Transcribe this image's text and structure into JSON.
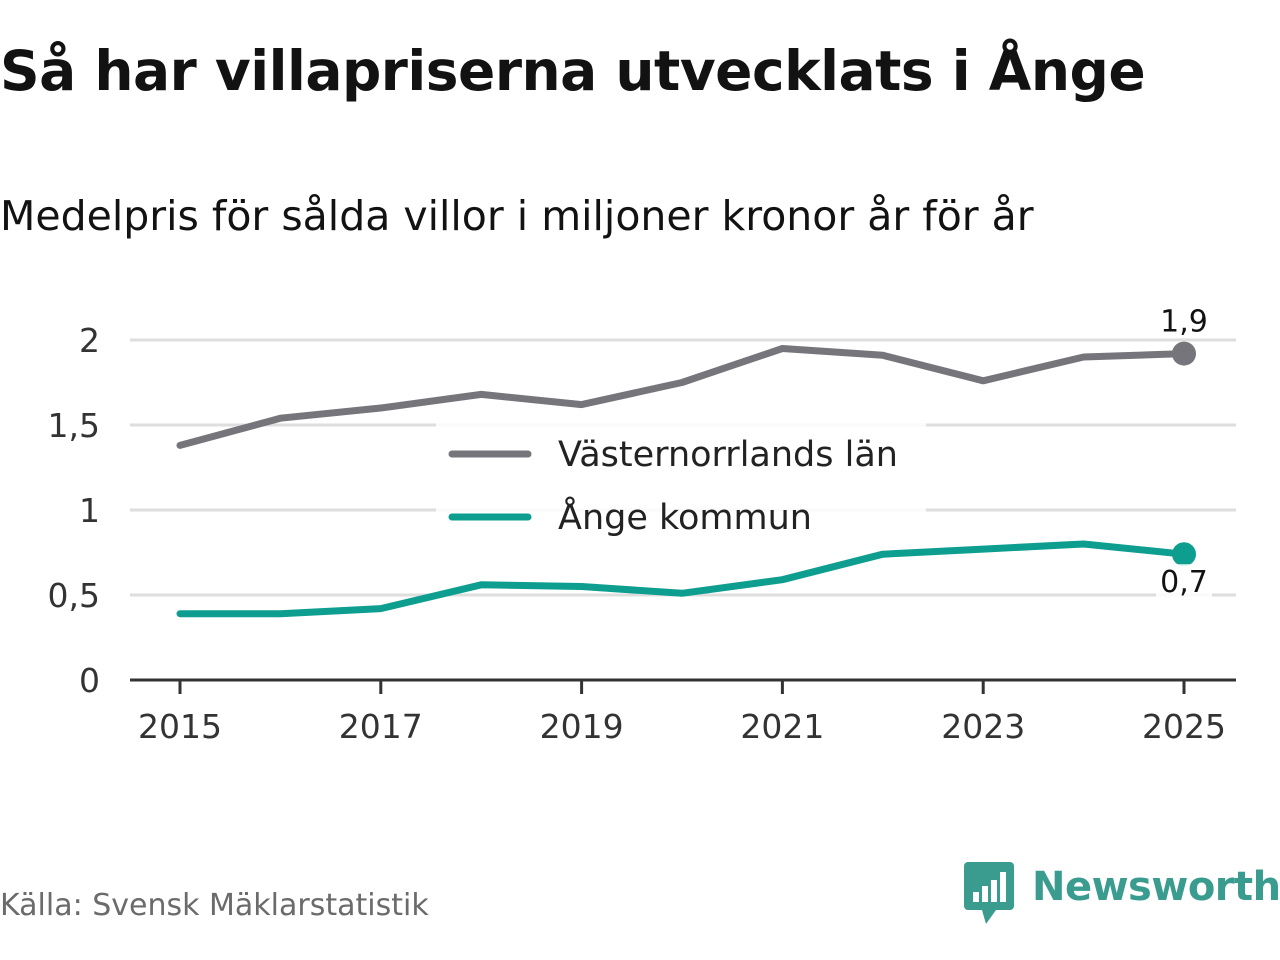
{
  "title": "Så har villapriserna utvecklats i Ånge",
  "subtitle": "Medelpris för sålda villor i miljoner kronor år för år",
  "source": "Källa: Svensk Mäklarstatistik",
  "brand": {
    "name": "Newsworthy",
    "icon": "newsworthy-logo-icon",
    "color": "#3a9c8f"
  },
  "chart_data": {
    "type": "line",
    "title": "Så har villapriserna utvecklats i Ånge",
    "subtitle": "Medelpris för sålda villor i miljoner kronor år för år",
    "xlabel": "",
    "ylabel": "",
    "x": [
      2015,
      2016,
      2017,
      2018,
      2019,
      2020,
      2021,
      2022,
      2023,
      2024,
      2025
    ],
    "ylim": [
      0,
      2.1
    ],
    "y_ticks": [
      0,
      0.5,
      1,
      1.5,
      2
    ],
    "y_tick_labels": [
      "0",
      "0,5",
      "1",
      "1,5",
      "2"
    ],
    "x_ticks": [
      2015,
      2017,
      2019,
      2021,
      2023,
      2025
    ],
    "x_tick_labels": [
      "2015",
      "2017",
      "2019",
      "2021",
      "2023",
      "2025"
    ],
    "grid": true,
    "legend_position": "center",
    "series": [
      {
        "name": "Västernorrlands län",
        "color": "#76757c",
        "values": [
          1.38,
          1.54,
          1.6,
          1.68,
          1.62,
          1.75,
          1.95,
          1.91,
          1.76,
          1.9,
          1.92
        ],
        "end_label": "1,9"
      },
      {
        "name": "Ånge kommun",
        "color": "#0d9e90",
        "values": [
          0.39,
          0.39,
          0.42,
          0.56,
          0.55,
          0.51,
          0.59,
          0.74,
          0.77,
          0.8,
          0.74
        ],
        "end_label": "0,7"
      }
    ]
  }
}
